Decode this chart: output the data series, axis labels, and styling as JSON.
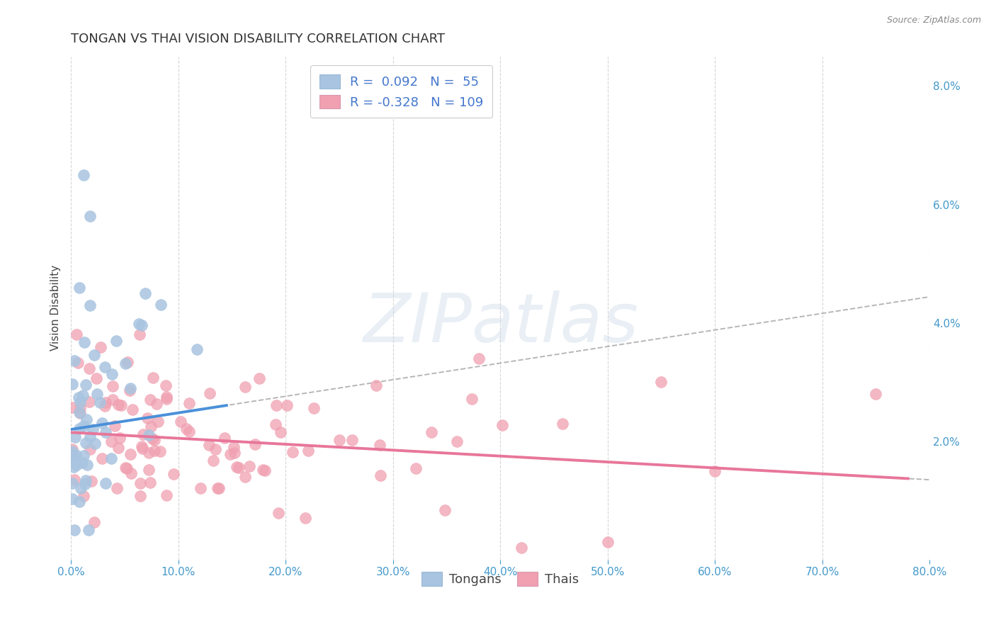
{
  "title": "TONGAN VS THAI VISION DISABILITY CORRELATION CHART",
  "source": "Source: ZipAtlas.com",
  "ylabel": "Vision Disability",
  "watermark": "ZIPatlas",
  "legend_labels": [
    "Tongans",
    "Thais"
  ],
  "tongan_R": 0.092,
  "tongan_N": 55,
  "thai_R": -0.328,
  "thai_N": 109,
  "tongan_color": "#a8c4e0",
  "thai_color": "#f0a0b0",
  "tongan_line_color": "#4a90d9",
  "thai_line_color": "#e8769a",
  "trendline_color": "#aaaaaa",
  "xlim": [
    0,
    0.8
  ],
  "ylim": [
    0,
    0.085
  ],
  "xticks": [
    0.0,
    0.1,
    0.2,
    0.3,
    0.4,
    0.5,
    0.6,
    0.7,
    0.8
  ],
  "yticks_right": [
    0.0,
    0.02,
    0.04,
    0.06,
    0.08
  ],
  "title_fontsize": 13,
  "source_fontsize": 9,
  "label_fontsize": 11,
  "tick_fontsize": 11
}
